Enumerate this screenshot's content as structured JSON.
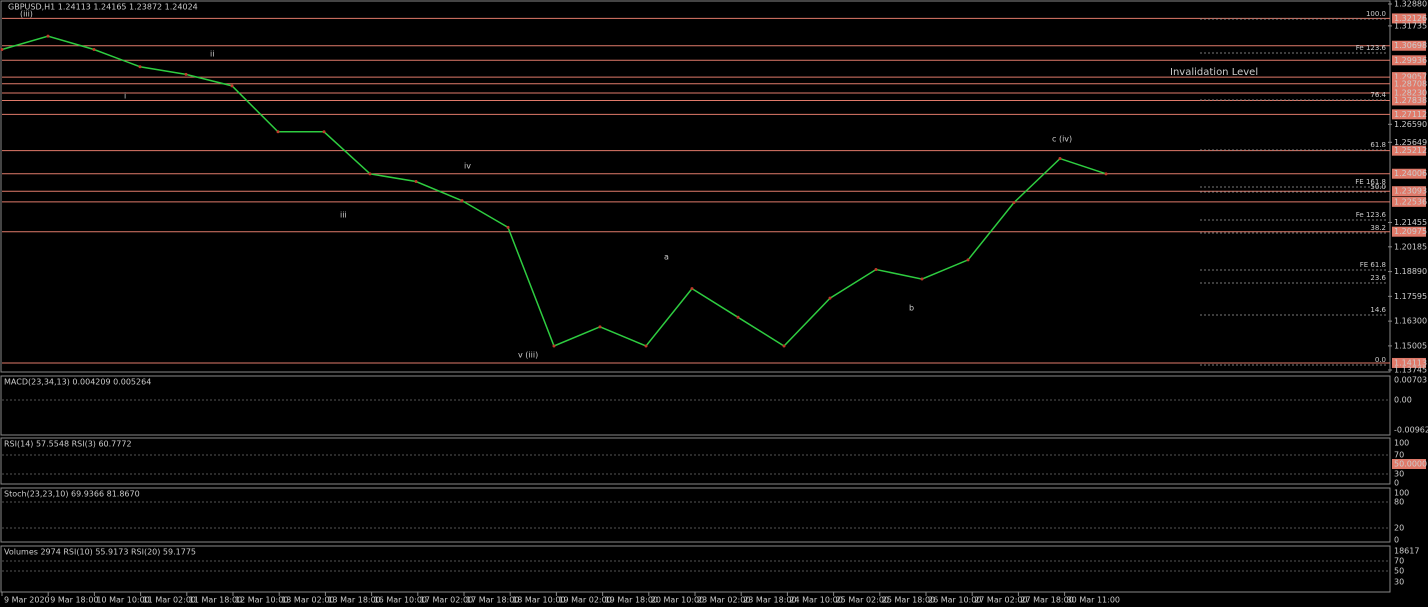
{
  "header": {
    "symbol_line": "GBPUSD,H1  1.24113 1.24165 1.23872 1.24024"
  },
  "main": {
    "ylim": [
      1.13745,
      1.3288
    ],
    "price_labels": [
      {
        "value": 1.3288,
        "label": "1.32880",
        "boxed": false
      },
      {
        "value": 1.32126,
        "label": "1.32126",
        "boxed": true
      },
      {
        "value": 1.31735,
        "label": "1.31735",
        "boxed": false
      },
      {
        "value": 1.30698,
        "label": "1.30698",
        "boxed": true
      },
      {
        "value": 1.29936,
        "label": "1.29936",
        "boxed": true
      },
      {
        "value": 1.29057,
        "label": "1.29057",
        "boxed": true
      },
      {
        "value": 1.28708,
        "label": "1.28708",
        "boxed": true
      },
      {
        "value": 1.2823,
        "label": "1.28230",
        "boxed": true
      },
      {
        "value": 1.27838,
        "label": "1.27838",
        "boxed": true
      },
      {
        "value": 1.27112,
        "label": "1.27112",
        "boxed": true
      },
      {
        "value": 1.2659,
        "label": "1.26590",
        "boxed": false
      },
      {
        "value": 1.25649,
        "label": "1.25649",
        "boxed": false
      },
      {
        "value": 1.25212,
        "label": "1.25212",
        "boxed": true
      },
      {
        "value": 1.24006,
        "label": "1.24006",
        "boxed": true
      },
      {
        "value": 1.23093,
        "label": "1.23093",
        "boxed": true
      },
      {
        "value": 1.22536,
        "label": "1.22536",
        "boxed": true
      },
      {
        "value": 1.21455,
        "label": "1.21455",
        "boxed": false
      },
      {
        "value": 1.20975,
        "label": "1.20975",
        "boxed": true
      },
      {
        "value": 1.20185,
        "label": "1.20185",
        "boxed": false
      },
      {
        "value": 1.1889,
        "label": "1.18890",
        "boxed": false
      },
      {
        "value": 1.17595,
        "label": "1.17595",
        "boxed": false
      },
      {
        "value": 1.163,
        "label": "1.16300",
        "boxed": false
      },
      {
        "value": 1.15005,
        "label": "1.15005",
        "boxed": false
      },
      {
        "value": 1.14113,
        "label": "1.14113",
        "boxed": true
      },
      {
        "value": 1.13745,
        "label": "1.13745",
        "boxed": false
      }
    ],
    "closes": [
      1.305,
      1.312,
      1.305,
      1.296,
      1.292,
      1.286,
      1.262,
      1.262,
      1.24,
      1.236,
      1.226,
      1.212,
      1.15,
      1.16,
      1.15,
      1.18,
      1.165,
      1.15,
      1.175,
      1.19,
      1.185,
      1.195,
      1.225,
      1.248,
      1.24
    ],
    "annotations": [
      "Invalidation Level",
      "c (iv)",
      "a",
      "b",
      "v (iii)",
      "iii",
      "iv",
      "ii",
      "i",
      "(iii)"
    ],
    "fib_labels": [
      "100.0",
      "Fe 123.6",
      "61.8",
      "76.4",
      "FE 161.8",
      "50.0",
      "Fe 123.6",
      "38.2",
      "FE 61.8",
      "23.6",
      "14.6",
      "0.0"
    ]
  },
  "panels": [
    {
      "title": "MACD(23,34,13) 0.004209 0.005264",
      "labels": [
        "0.00703",
        "0.00",
        "-0.009621"
      ]
    },
    {
      "title": "RSI(14) 57.5548  RSI(3) 60.7772",
      "labels": [
        "100",
        "70",
        "50.0000",
        "30",
        "0"
      ]
    },
    {
      "title": "Stoch(23,23,10) 69.9366 81.8670",
      "labels": [
        "100",
        "80",
        "20",
        "0"
      ]
    },
    {
      "title": "Volumes 2974  RSI(10) 55.9173  RSI(20) 59.1775",
      "labels": [
        "18617",
        "70",
        "50",
        "30"
      ]
    }
  ],
  "time_labels": [
    "9 Mar 2020",
    "9 Mar 18:00",
    "10 Mar 10:00",
    "11 Mar 02:00",
    "11 Mar 18:00",
    "12 Mar 10:00",
    "13 Mar 02:00",
    "13 Mar 18:00",
    "16 Mar 10:00",
    "17 Mar 02:00",
    "17 Mar 18:00",
    "18 Mar 10:00",
    "19 Mar 02:00",
    "19 Mar 18:00",
    "20 Mar 10:00",
    "23 Mar 02:00",
    "23 Mar 18:00",
    "24 Mar 10:00",
    "25 Mar 02:00",
    "25 Mar 18:00",
    "26 Mar 10:00",
    "27 Mar 02:00",
    "27 Mar 18:00",
    "30 Mar 11:00"
  ]
}
